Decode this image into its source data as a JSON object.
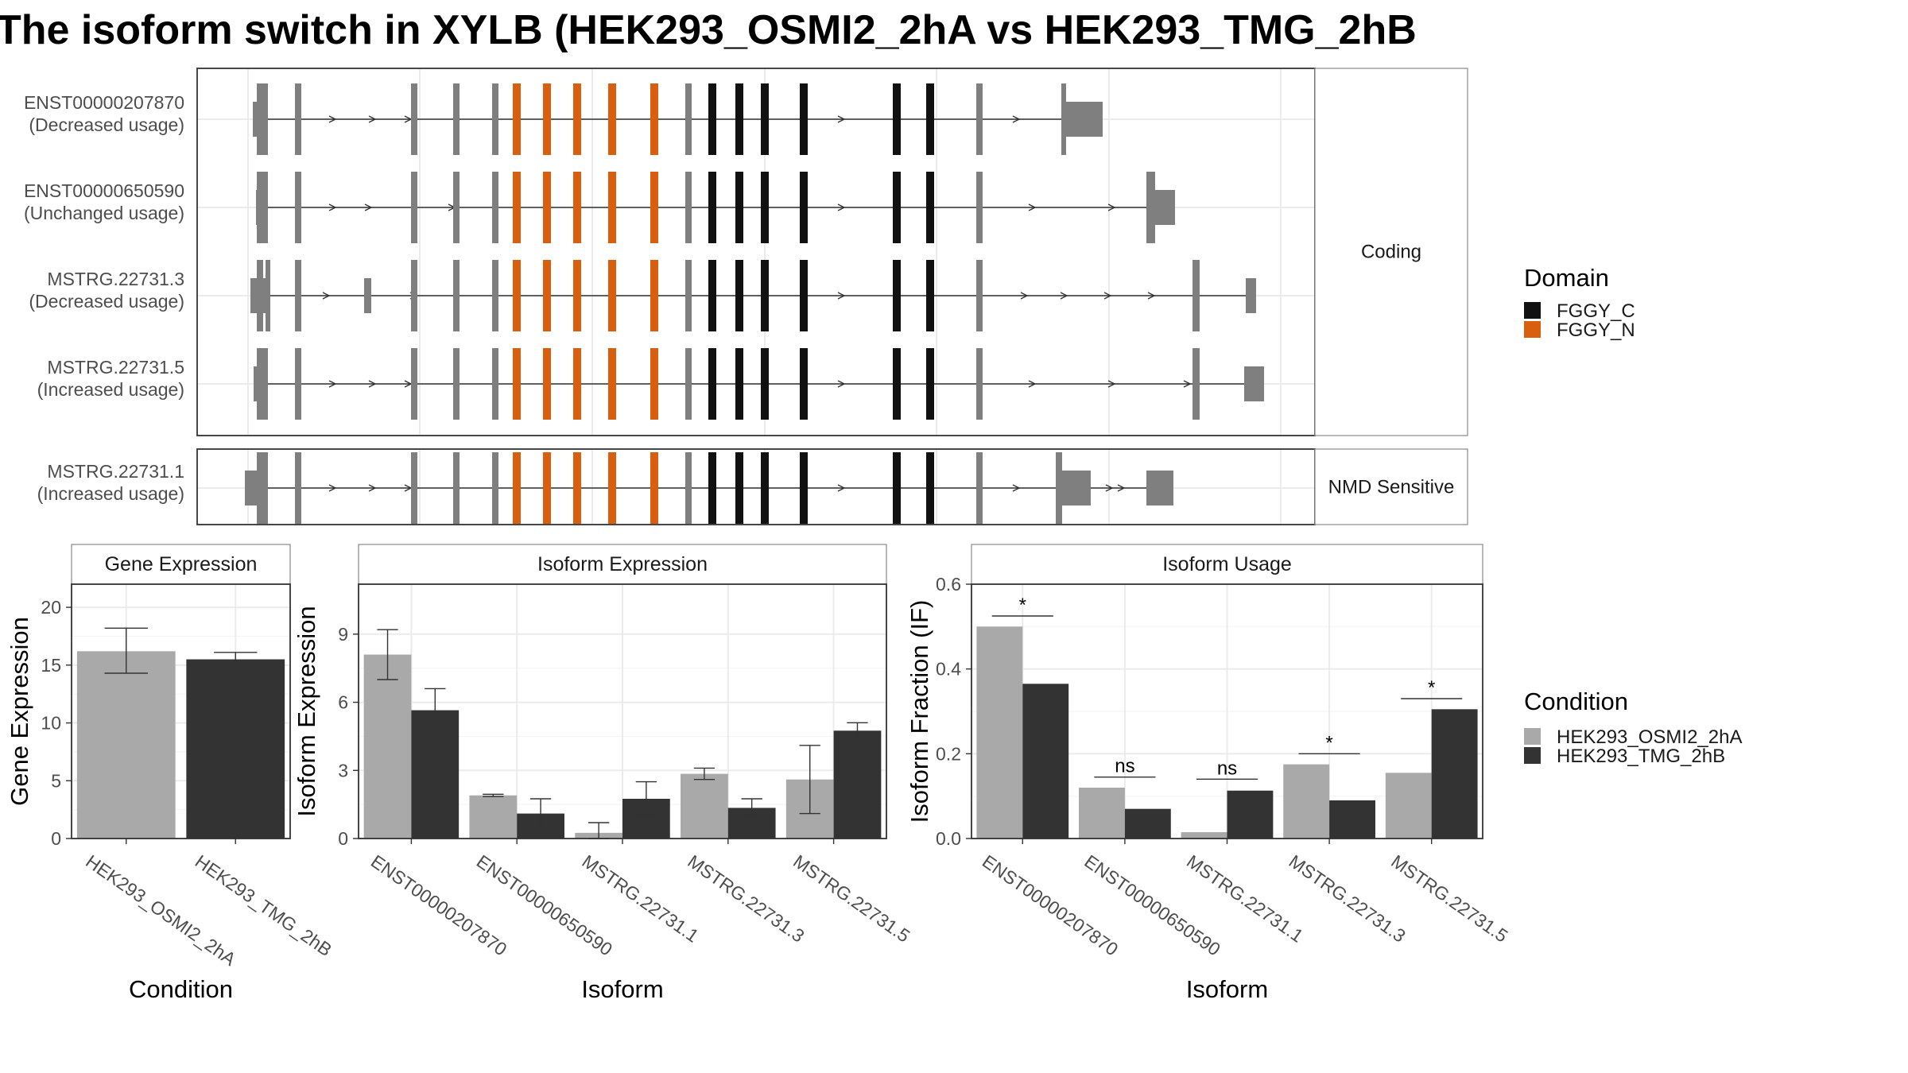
{
  "title": "The isoform switch in XYLB (HEK293_OSMI2_2hA vs HEK293_TMG_2hB",
  "colors": {
    "fggy_c": "#111111",
    "fggy_n": "#d95f0e",
    "exon_gray": "#7f7f7f",
    "cond_a": "#a9a9a9",
    "cond_b": "#333333",
    "grid": "#ebebeb"
  },
  "transcripts": {
    "groups": [
      {
        "label": "Coding",
        "isoforms": [
          {
            "id": "ENST00000207870",
            "status": "(Decreased usage)"
          },
          {
            "id": "ENST00000650590",
            "status": "(Unchanged usage)"
          },
          {
            "id": "MSTRG.22731.3",
            "status": "(Decreased usage)"
          },
          {
            "id": "MSTRG.22731.5",
            "status": "(Increased usage)"
          }
        ]
      },
      {
        "label": "NMD Sensitive",
        "isoforms": [
          {
            "id": "MSTRG.22731.1",
            "status": "(Increased usage)"
          }
        ]
      }
    ]
  },
  "domain_legend": {
    "title": "Domain",
    "items": [
      {
        "label": "FGGY_C",
        "color": "#111111"
      },
      {
        "label": "FGGY_N",
        "color": "#d95f0e"
      }
    ]
  },
  "condition_legend": {
    "title": "Condition",
    "items": [
      {
        "label": "HEK293_OSMI2_2hA",
        "color": "#a9a9a9"
      },
      {
        "label": "HEK293_TMG_2hB",
        "color": "#333333"
      }
    ]
  },
  "chart_data": [
    {
      "type": "bar",
      "title": "Gene Expression",
      "xlabel": "Condition",
      "ylabel": "Gene Expression",
      "ylim": [
        0,
        22
      ],
      "yticks": [
        "0",
        "5",
        "10",
        "15",
        "20"
      ],
      "categories": [
        "HEK293_OSMI2_2hA",
        "HEK293_TMG_2hB"
      ],
      "values": [
        16.2,
        15.5
      ],
      "errors": [
        [
          14.3,
          18.2
        ],
        [
          14.9,
          16.1
        ]
      ],
      "grid": true
    },
    {
      "type": "bar",
      "title": "Isoform Expression",
      "xlabel": "Isoform",
      "ylabel": "Isoform Expression",
      "ylim": [
        0,
        11.2
      ],
      "yticks": [
        "0",
        "3",
        "6",
        "9"
      ],
      "categories": [
        "ENST00000207870",
        "ENST00000650590",
        "MSTRG.22731.1",
        "MSTRG.22731.3",
        "MSTRG.22731.5"
      ],
      "series": [
        {
          "name": "HEK293_OSMI2_2hA",
          "values": [
            8.1,
            1.9,
            0.25,
            2.85,
            2.6
          ],
          "errors": [
            [
              7.0,
              9.2
            ],
            [
              1.85,
              1.95
            ],
            [
              0.0,
              0.7
            ],
            [
              2.6,
              3.1
            ],
            [
              1.1,
              4.1
            ]
          ]
        },
        {
          "name": "HEK293_TMG_2hB",
          "values": [
            5.65,
            1.1,
            1.75,
            1.35,
            4.75
          ],
          "errors": [
            [
              4.7,
              6.6
            ],
            [
              0.5,
              1.75
            ],
            [
              1.0,
              2.5
            ],
            [
              1.0,
              1.75
            ],
            [
              4.4,
              5.1
            ]
          ]
        }
      ],
      "grid": true
    },
    {
      "type": "bar",
      "title": "Isoform Usage",
      "xlabel": "Isoform",
      "ylabel": "Isoform Fraction (IF)",
      "ylim": [
        0,
        0.6
      ],
      "yticks": [
        "0.0",
        "0.2",
        "0.4",
        "0.6"
      ],
      "categories": [
        "ENST00000207870",
        "ENST00000650590",
        "MSTRG.22731.1",
        "MSTRG.22731.3",
        "MSTRG.22731.5"
      ],
      "series": [
        {
          "name": "HEK293_OSMI2_2hA",
          "values": [
            0.5,
            0.12,
            0.015,
            0.175,
            0.155
          ]
        },
        {
          "name": "HEK293_TMG_2hB",
          "values": [
            0.365,
            0.07,
            0.113,
            0.09,
            0.305
          ]
        }
      ],
      "significance": [
        "*",
        "ns",
        "ns",
        "*",
        "*"
      ],
      "sig_values": [
        0.525,
        0.145,
        0.14,
        0.2,
        0.33
      ],
      "grid": true
    }
  ]
}
